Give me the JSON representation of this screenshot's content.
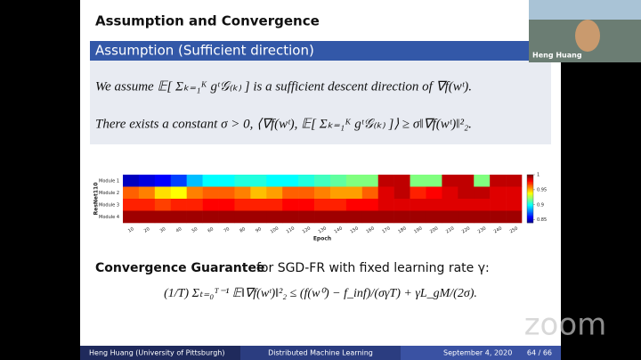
{
  "slide": {
    "title": "Assumption and Convergence",
    "block_title": "Assumption (Sufficient direction)",
    "block_line_1": "We assume 𝔼[ Σₖ₌₁ᴷ gᵗ𝒢₍ₖ₎ ] is a sufficient descent direction of ∇f(wᵗ).",
    "block_line_2": "There exists a constant σ > 0,  ⟨∇f(wᵗ), 𝔼[ Σₖ₌₁ᴷ gᵗ𝒢₍ₖ₎ ]⟩ ≥ σ‖∇f(wᵗ)‖²₂.",
    "convergence_bold": "Convergence Guarantee",
    "convergence_text": "for SGD-FR with fixed learning rate γ:",
    "formula": "(1/T) Σₜ₌₀ᵀ⁻¹ 𝔼‖∇f(wᵗ)‖²₂ ≤ (f(w⁰) − f_inf)/(σγT) + γL_gM/(2σ)."
  },
  "footer": {
    "author": "Heng Huang  (University of Pittsburgh)",
    "talk": "Distributed Machine Learning",
    "date": "September 4, 2020",
    "page": "64 / 66"
  },
  "zoom": {
    "participant": "Heng Huang",
    "logo": "zoom"
  },
  "chart_data": {
    "type": "heatmap",
    "x_label": "Epoch",
    "y_label": "ResNet110",
    "rows": [
      "Module 1",
      "Module 2",
      "Module 3",
      "Module 4"
    ],
    "categories": [
      10,
      20,
      30,
      40,
      50,
      60,
      70,
      80,
      90,
      100,
      110,
      120,
      130,
      140,
      150,
      160,
      170,
      180,
      190,
      200,
      210,
      220,
      230,
      240,
      250
    ],
    "values": [
      [
        0.85,
        0.855,
        0.86,
        0.87,
        0.89,
        0.9,
        0.9,
        0.905,
        0.905,
        0.9,
        0.9,
        0.905,
        0.91,
        0.915,
        0.92,
        0.92,
        0.99,
        0.99,
        0.92,
        0.92,
        0.99,
        0.99,
        0.92,
        0.99,
        0.99
      ],
      [
        0.965,
        0.96,
        0.945,
        0.94,
        0.96,
        0.965,
        0.965,
        0.96,
        0.95,
        0.955,
        0.965,
        0.965,
        0.96,
        0.955,
        0.955,
        0.965,
        0.985,
        0.99,
        0.975,
        0.98,
        0.985,
        0.99,
        0.99,
        0.985,
        0.985
      ],
      [
        0.975,
        0.975,
        0.97,
        0.975,
        0.975,
        0.98,
        0.98,
        0.975,
        0.975,
        0.975,
        0.98,
        0.98,
        0.975,
        0.975,
        0.98,
        0.98,
        0.985,
        0.985,
        0.985,
        0.985,
        0.985,
        0.985,
        0.985,
        0.985,
        0.985
      ],
      [
        0.995,
        0.995,
        0.995,
        0.995,
        0.995,
        0.995,
        0.995,
        0.995,
        0.995,
        0.995,
        0.995,
        0.995,
        0.995,
        0.995,
        0.995,
        0.995,
        0.995,
        0.995,
        0.995,
        0.995,
        0.995,
        0.995,
        0.995,
        0.995,
        0.995
      ]
    ],
    "colormap": "jet",
    "clim": [
      0.84,
      1
    ],
    "cticks": [
      1,
      0.95,
      0.9,
      0.85
    ]
  }
}
